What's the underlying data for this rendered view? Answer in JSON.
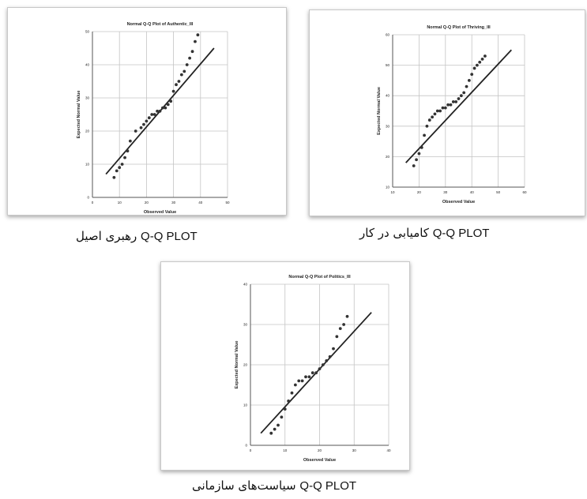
{
  "chart_data": [
    {
      "type": "scatter",
      "title": "Normal Q-Q Plot of Authentic_III",
      "xlabel": "Observed Value",
      "ylabel": "Expected Normal Value",
      "caption_tag": "Q-Q PLOT",
      "caption_text": "رهبری اصیل",
      "xlim": [
        0,
        50
      ],
      "ylim": [
        0,
        50
      ],
      "xticks": [
        0,
        10,
        20,
        30,
        40,
        50
      ],
      "yticks": [
        0,
        10,
        20,
        30,
        40,
        50
      ],
      "grid": true,
      "reference_line": [
        [
          5,
          7
        ],
        [
          45,
          45
        ]
      ],
      "points": [
        [
          8,
          6
        ],
        [
          9,
          8
        ],
        [
          10,
          9
        ],
        [
          11,
          10
        ],
        [
          12,
          12
        ],
        [
          13,
          14
        ],
        [
          14,
          17
        ],
        [
          16,
          20
        ],
        [
          18,
          21
        ],
        [
          19,
          22
        ],
        [
          20,
          23
        ],
        [
          21,
          24
        ],
        [
          22,
          25
        ],
        [
          23,
          25
        ],
        [
          24,
          26
        ],
        [
          25,
          26
        ],
        [
          26,
          27
        ],
        [
          27,
          27
        ],
        [
          28,
          28
        ],
        [
          29,
          29
        ],
        [
          30,
          32
        ],
        [
          31,
          34
        ],
        [
          32,
          35
        ],
        [
          33,
          37
        ],
        [
          34,
          38
        ],
        [
          35,
          40
        ],
        [
          36,
          42
        ],
        [
          37,
          44
        ],
        [
          38,
          47
        ],
        [
          39,
          49
        ]
      ]
    },
    {
      "type": "scatter",
      "title": "Normal Q-Q Plot of Thriving_III",
      "xlabel": "Observed Value",
      "ylabel": "Expected Normal Value",
      "caption_tag": "Q-Q PLOT",
      "caption_text": "کامیابی در کار",
      "xlim": [
        10,
        60
      ],
      "ylim": [
        10,
        60
      ],
      "xticks": [
        10,
        20,
        30,
        40,
        50,
        60
      ],
      "yticks": [
        10,
        20,
        30,
        40,
        50,
        60
      ],
      "grid": true,
      "reference_line": [
        [
          15,
          18
        ],
        [
          55,
          55
        ]
      ],
      "points": [
        [
          18,
          17
        ],
        [
          19,
          19
        ],
        [
          20,
          21
        ],
        [
          21,
          23
        ],
        [
          22,
          27
        ],
        [
          23,
          30
        ],
        [
          24,
          32
        ],
        [
          25,
          33
        ],
        [
          26,
          34
        ],
        [
          27,
          35
        ],
        [
          28,
          35
        ],
        [
          29,
          36
        ],
        [
          30,
          36
        ],
        [
          31,
          37
        ],
        [
          32,
          37
        ],
        [
          33,
          38
        ],
        [
          34,
          38
        ],
        [
          35,
          39
        ],
        [
          36,
          40
        ],
        [
          37,
          41
        ],
        [
          38,
          43
        ],
        [
          39,
          45
        ],
        [
          40,
          47
        ],
        [
          41,
          49
        ],
        [
          42,
          50
        ],
        [
          43,
          51
        ],
        [
          44,
          52
        ],
        [
          45,
          53
        ]
      ]
    },
    {
      "type": "scatter",
      "title": "Normal Q-Q Plot of Politics_III",
      "xlabel": "Observed Value",
      "ylabel": "Expected Normal Value",
      "caption_tag": "Q-Q PLOT",
      "caption_text": "سیاست‌های سازمانی",
      "xlim": [
        0,
        40
      ],
      "ylim": [
        0,
        40
      ],
      "xticks": [
        0,
        10,
        20,
        30,
        40
      ],
      "yticks": [
        0,
        10,
        20,
        30,
        40
      ],
      "grid": true,
      "reference_line": [
        [
          3,
          3
        ],
        [
          35,
          33
        ]
      ],
      "points": [
        [
          6,
          3
        ],
        [
          7,
          4
        ],
        [
          8,
          5
        ],
        [
          9,
          7
        ],
        [
          10,
          9
        ],
        [
          11,
          11
        ],
        [
          12,
          13
        ],
        [
          13,
          15
        ],
        [
          14,
          16
        ],
        [
          15,
          16
        ],
        [
          16,
          17
        ],
        [
          17,
          17
        ],
        [
          18,
          18
        ],
        [
          19,
          18
        ],
        [
          20,
          19
        ],
        [
          21,
          20
        ],
        [
          22,
          21
        ],
        [
          23,
          22
        ],
        [
          24,
          24
        ],
        [
          25,
          27
        ],
        [
          26,
          29
        ],
        [
          27,
          30
        ],
        [
          28,
          32
        ]
      ]
    }
  ]
}
